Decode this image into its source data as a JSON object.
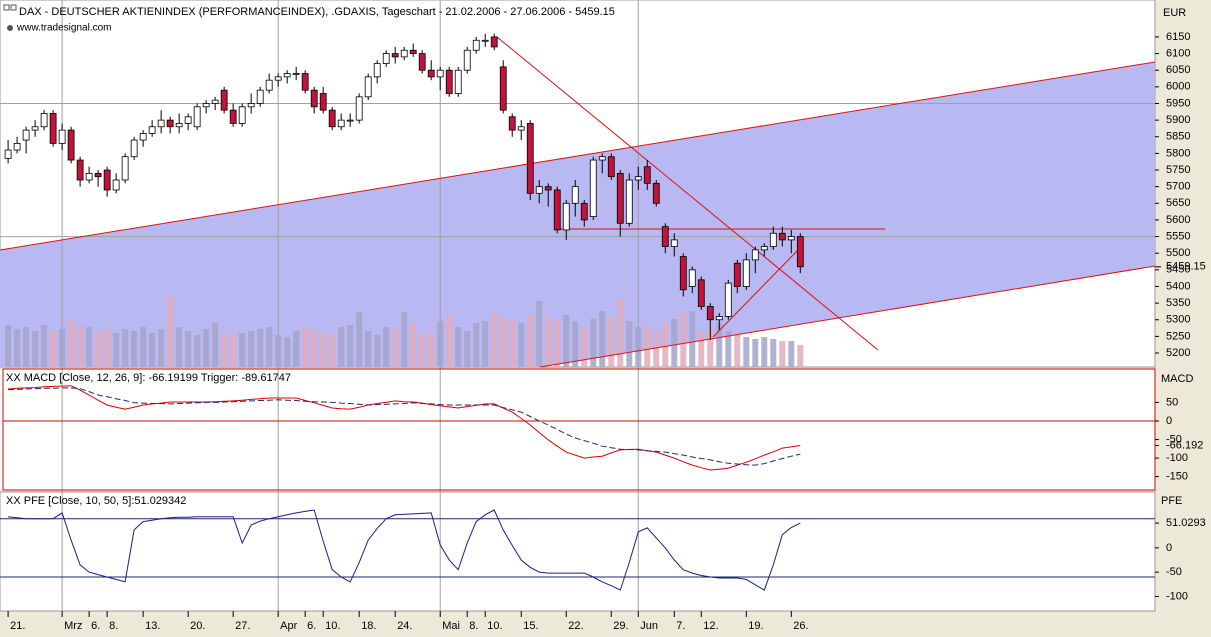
{
  "chart_data": [
    {
      "type": "candlestick",
      "title": "DAX - DEUTSCHER AKTIENINDEX (PERFORMANCEINDEX), .GDAXIS, Tageschart - 21.02.2006 - 27.06.2006 - 5459.15",
      "source": "www.tradesignal.com",
      "ylabel": "EUR",
      "xlim": [
        -0.9,
        127.4
      ],
      "xticks": [
        {
          "value": 0,
          "label": "21."
        },
        {
          "value": 6,
          "label": "Mrz"
        },
        {
          "value": 9,
          "label": "6."
        },
        {
          "value": 11,
          "label": "8."
        },
        {
          "value": 15,
          "label": "13."
        },
        {
          "value": 20,
          "label": "20."
        },
        {
          "value": 25,
          "label": "27."
        },
        {
          "value": 30,
          "label": "Apr"
        },
        {
          "value": 33,
          "label": "6."
        },
        {
          "value": 35,
          "label": "10."
        },
        {
          "value": 39,
          "label": "18."
        },
        {
          "value": 43,
          "label": "24."
        },
        {
          "value": 48,
          "label": "Mai"
        },
        {
          "value": 51,
          "label": "8."
        },
        {
          "value": 53,
          "label": "10."
        },
        {
          "value": 57,
          "label": "15."
        },
        {
          "value": 62,
          "label": "22."
        },
        {
          "value": 67,
          "label": "29."
        },
        {
          "value": 70,
          "label": "Jun"
        },
        {
          "value": 74,
          "label": "7."
        },
        {
          "value": 77,
          "label": "12."
        },
        {
          "value": 82,
          "label": "19."
        },
        {
          "value": 87,
          "label": "26."
        }
      ],
      "xgrid": [
        6,
        30,
        48,
        70
      ],
      "ylim": [
        5158,
        6261
      ],
      "yticks": [
        6150,
        6100,
        6050,
        6000,
        5950,
        5900,
        5850,
        5800,
        5750,
        5700,
        5650,
        5600,
        5550,
        5500,
        5450,
        5400,
        5350,
        5300,
        5250,
        5200
      ],
      "hlines": [
        5950,
        5550
      ],
      "up_color": "#ffffff",
      "down_color": "#c0143c",
      "volume_up_color": "#a3a3c9",
      "volume_down_color": "#e2aabb",
      "open": [
        5785,
        5810,
        5840,
        5870,
        5880,
        5920,
        5830,
        5870,
        5780,
        5720,
        5740,
        5750,
        5690,
        5720,
        5790,
        5840,
        5860,
        5880,
        5900,
        5880,
        5890,
        5880,
        5940,
        5950,
        5990,
        5930,
        5890,
        5940,
        5950,
        5990,
        6020,
        6030,
        6040,
        6040,
        5990,
        5980,
        5930,
        5880,
        5900,
        5900,
        5970,
        6030,
        6070,
        6100,
        6090,
        6110,
        6100,
        6050,
        6030,
        6050,
        5980,
        6050,
        6110,
        6140,
        6150,
        6060,
        5910,
        5870,
        5890,
        5680,
        5700,
        5690,
        5570,
        5650,
        5650,
        5610,
        5780,
        5790,
        5740,
        5590,
        5720,
        5760,
        5710,
        5580,
        5520,
        5490,
        5400,
        5420,
        5340,
        5300,
        5310,
        5470,
        5400,
        5480,
        5510,
        5520,
        5560,
        5540,
        5550
      ],
      "high": [
        5840,
        5850,
        5880,
        5900,
        5930,
        5930,
        5890,
        5880,
        5790,
        5760,
        5750,
        5760,
        5740,
        5800,
        5850,
        5870,
        5900,
        5930,
        5910,
        5920,
        5920,
        5950,
        5960,
        5970,
        6000,
        5950,
        5950,
        5980,
        6000,
        6040,
        6040,
        6050,
        6060,
        6050,
        6000,
        6000,
        5940,
        5920,
        5920,
        5980,
        6040,
        6080,
        6110,
        6120,
        6120,
        6130,
        6110,
        6080,
        6060,
        6060,
        6060,
        6120,
        6150,
        6160,
        6160,
        6080,
        5920,
        5900,
        5900,
        5720,
        5710,
        5700,
        5660,
        5720,
        5660,
        5790,
        5800,
        5800,
        5750,
        5740,
        5760,
        5780,
        5720,
        5590,
        5560,
        5500,
        5460,
        5430,
        5350,
        5320,
        5420,
        5480,
        5500,
        5520,
        5530,
        5580,
        5580,
        5570,
        5560
      ],
      "low": [
        5770,
        5800,
        5800,
        5850,
        5870,
        5820,
        5810,
        5770,
        5700,
        5710,
        5700,
        5670,
        5680,
        5710,
        5780,
        5820,
        5850,
        5860,
        5860,
        5860,
        5870,
        5870,
        5920,
        5930,
        5920,
        5880,
        5880,
        5920,
        5940,
        5980,
        6000,
        6010,
        6020,
        5980,
        5920,
        5920,
        5870,
        5870,
        5880,
        5890,
        5960,
        6010,
        6060,
        6070,
        6080,
        6090,
        6040,
        6020,
        5990,
        5970,
        5970,
        6040,
        6100,
        6120,
        6110,
        5920,
        5850,
        5840,
        5660,
        5650,
        5640,
        5560,
        5540,
        5610,
        5580,
        5600,
        5740,
        5720,
        5550,
        5580,
        5690,
        5690,
        5640,
        5500,
        5490,
        5370,
        5380,
        5330,
        5240,
        5270,
        5300,
        5380,
        5390,
        5440,
        5490,
        5510,
        5520,
        5500,
        5440
      ],
      "close": [
        5810,
        5830,
        5870,
        5880,
        5920,
        5830,
        5870,
        5780,
        5720,
        5740,
        5730,
        5690,
        5720,
        5790,
        5840,
        5860,
        5880,
        5900,
        5880,
        5890,
        5910,
        5940,
        5950,
        5960,
        5930,
        5890,
        5940,
        5950,
        5990,
        6020,
        6030,
        6040,
        6040,
        5990,
        5940,
        5930,
        5880,
        5900,
        5900,
        5970,
        6030,
        6070,
        6100,
        6090,
        6110,
        6100,
        6050,
        6030,
        6050,
        5980,
        6050,
        6110,
        6140,
        6140,
        6120,
        5930,
        5870,
        5880,
        5680,
        5700,
        5690,
        5570,
        5650,
        5700,
        5600,
        5780,
        5790,
        5730,
        5590,
        5720,
        5730,
        5710,
        5650,
        5520,
        5540,
        5390,
        5450,
        5340,
        5300,
        5310,
        5410,
        5400,
        5480,
        5510,
        5520,
        5560,
        5540,
        5550,
        5459.15
      ],
      "volume": [
        42,
        38,
        40,
        36,
        42,
        36,
        38,
        46,
        42,
        40,
        36,
        38,
        34,
        38,
        36,
        40,
        34,
        38,
        72,
        40,
        36,
        32,
        38,
        44,
        34,
        32,
        34,
        36,
        38,
        40,
        32,
        30,
        36,
        40,
        38,
        34,
        32,
        40,
        42,
        55,
        36,
        32,
        40,
        38,
        55,
        44,
        34,
        34,
        46,
        52,
        40,
        36,
        44,
        46,
        54,
        50,
        46,
        44,
        52,
        66,
        50,
        46,
        52,
        46,
        40,
        48,
        56,
        50,
        68,
        46,
        40,
        42,
        36,
        44,
        48,
        54,
        56,
        36,
        40,
        44,
        36,
        34,
        30,
        28,
        30,
        28,
        26,
        26,
        22
      ]
    },
    {
      "type": "line",
      "title": "XX MACD [Close, 12, 26, 9]: -66.19199 Trigger: -89.61747",
      "ylabel": "MACD",
      "ylim": [
        -186,
        140
      ],
      "yticks": [
        50,
        0,
        {
          "value": -66.19199,
          "label": "-66.192"
        },
        -50,
        -100,
        -150
      ],
      "hlines": [
        0
      ],
      "hline_color": "#e00000",
      "series": [
        {
          "color": "#e00000",
          "dash": false,
          "values": [
            86,
            88,
            89,
            90,
            92,
            93,
            94,
            95,
            83,
            70,
            56,
            43,
            37,
            32,
            37,
            43,
            46,
            48,
            51,
            51,
            51,
            51,
            51,
            52,
            53,
            54,
            56,
            58,
            60,
            62,
            62,
            62,
            62,
            55,
            49,
            42,
            35,
            33,
            32,
            37,
            43,
            47,
            50,
            54,
            52,
            51,
            48,
            44,
            41,
            38,
            35,
            39,
            42,
            46,
            46,
            35,
            24,
            7,
            -11,
            -31,
            -51,
            -68,
            -84,
            -92,
            -100,
            -97,
            -95,
            -86,
            -78,
            -77,
            -76,
            -80,
            -84,
            -92,
            -100,
            -110,
            -119,
            -126,
            -132,
            -130,
            -127,
            -119,
            -111,
            -102,
            -92,
            -83,
            -73,
            -70,
            -66.19199
          ]
        },
        {
          "color": "#1c2a7a",
          "dash": true,
          "values": [
            84,
            85,
            86,
            87,
            88,
            88,
            89,
            89,
            87,
            79,
            70,
            65,
            60,
            55,
            49,
            48,
            47,
            47,
            46,
            47,
            48,
            49,
            50,
            50,
            51,
            52,
            53,
            54,
            55,
            56,
            57,
            56,
            55,
            53,
            52,
            51,
            50,
            48,
            47,
            45,
            43,
            44,
            45,
            46,
            47,
            49,
            47,
            46,
            44,
            43,
            43,
            43,
            43,
            43,
            43,
            36,
            30,
            24,
            12,
            0,
            -11,
            -23,
            -35,
            -46,
            -53,
            -60,
            -68,
            -72,
            -76,
            -77,
            -78,
            -80,
            -82,
            -84,
            -88,
            -92,
            -97,
            -101,
            -105,
            -110,
            -114,
            -116,
            -118,
            -119,
            -115,
            -108,
            -101,
            -95,
            -89.61747
          ]
        }
      ]
    },
    {
      "type": "line",
      "title": "XX PFE [Close, 10, 50, 5]:51.029342",
      "ylabel": "PFE",
      "ylim": [
        -130,
        115
      ],
      "yticks": [
        {
          "value": 51.029342,
          "label": "51.0293"
        },
        0,
        -50,
        -100
      ],
      "hlines": [
        60,
        -60
      ],
      "hline_color": "#1c2a6a",
      "series": [
        {
          "color": "#1c1c8c",
          "dash": false,
          "values": [
            64,
            62,
            60,
            60,
            60,
            60,
            72,
            16,
            -35,
            -50,
            -55,
            -60,
            -65,
            -70,
            37,
            54,
            57,
            60,
            62,
            63,
            63,
            64,
            64,
            64,
            64,
            64,
            10,
            47,
            55,
            60,
            64,
            68,
            72,
            75,
            78,
            14,
            -45,
            -60,
            -70,
            -30,
            16,
            40,
            60,
            68,
            69,
            70,
            71,
            72,
            6,
            -25,
            -45,
            10,
            54,
            68,
            78,
            37,
            5,
            -25,
            -40,
            -50,
            -52,
            -52,
            -52,
            -52,
            -52,
            -60,
            -70,
            -78,
            -87,
            -30,
            33,
            41,
            20,
            0,
            -25,
            -45,
            -52,
            -57,
            -60,
            -62,
            -62,
            -62,
            -65,
            -76,
            -87,
            -35,
            27,
            42,
            51.029342
          ]
        }
      ]
    }
  ]
}
